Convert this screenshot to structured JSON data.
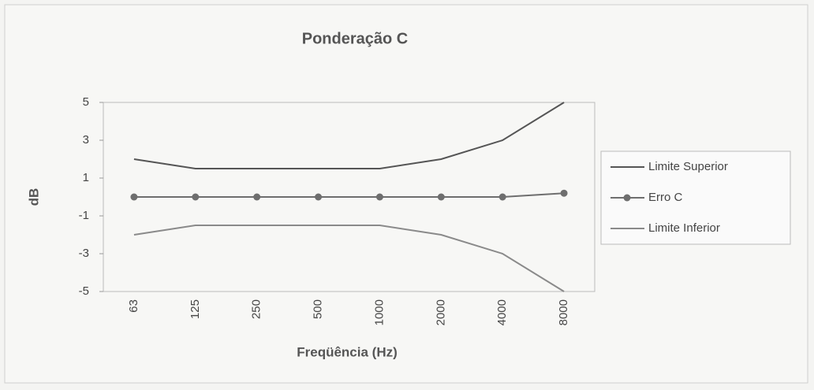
{
  "chart_data": {
    "type": "line",
    "title": "Ponderação C",
    "x_label": "Freqüência (Hz)",
    "y_label": "dB",
    "categories": [
      "63",
      "125",
      "250",
      "500",
      "1000",
      "2000",
      "4000",
      "8000"
    ],
    "series": [
      {
        "name": "Limite Superior",
        "color": "#555555",
        "marker": false,
        "values": [
          2,
          1.5,
          1.5,
          1.5,
          1.5,
          2,
          3,
          5
        ]
      },
      {
        "name": "Erro C",
        "color": "#6e6e6e",
        "marker": true,
        "values": [
          0,
          0,
          0,
          0,
          0,
          0,
          0,
          0.2
        ]
      },
      {
        "name": "Limite Inferior",
        "color": "#8a8a8a",
        "marker": false,
        "values": [
          -2,
          -1.5,
          -1.5,
          -1.5,
          -1.5,
          -2,
          -3,
          -5
        ]
      }
    ],
    "ylim": [
      -5,
      5
    ],
    "yticks": [
      5,
      3,
      1,
      -1,
      -3,
      -5
    ],
    "grid": false,
    "legend": "right"
  }
}
